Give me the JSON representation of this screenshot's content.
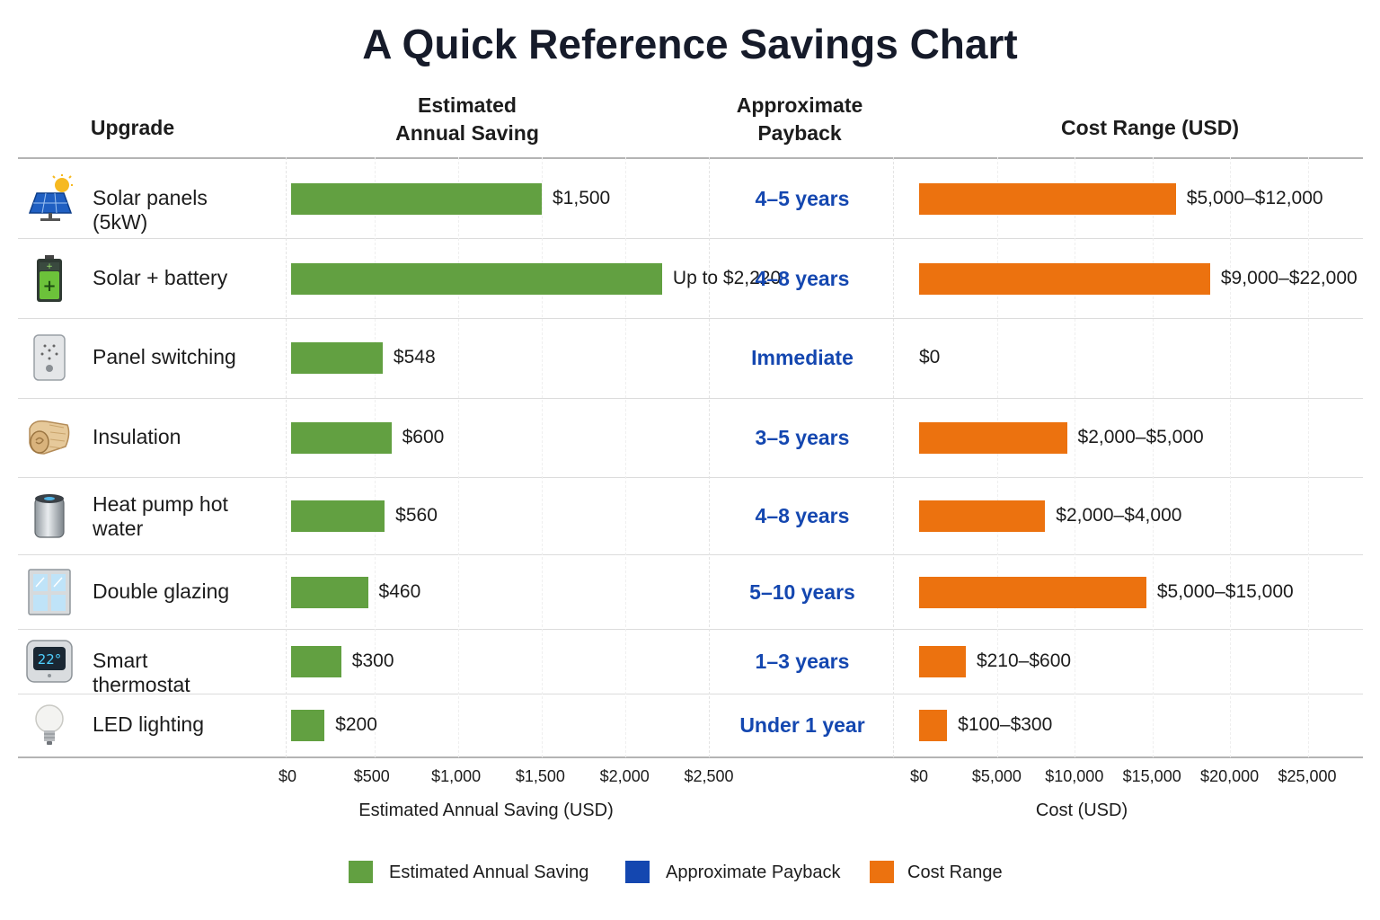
{
  "title": "A Quick Reference Savings Chart",
  "headers": {
    "upgrade": "Upgrade",
    "saving_line1": "Estimated",
    "saving_line2": "Annual Saving",
    "payback_line1": "Approximate",
    "payback_line2": "Payback",
    "cost": "Cost Range (USD)"
  },
  "colors": {
    "saving": "#62a041",
    "payback": "#1447b0",
    "cost": "#ec720f"
  },
  "chart_data": [
    {
      "type": "bar",
      "orientation": "horizontal",
      "categories": [
        "Solar panels (5kW)",
        "Solar + battery",
        "Panel switching",
        "Insulation",
        "Heat pump hot water",
        "Double glazing",
        "Smart thermostat",
        "LED lighting"
      ],
      "series": [
        {
          "name": "Estimated Annual Saving",
          "values": [
            1500,
            2220,
            548,
            600,
            560,
            460,
            300,
            200
          ]
        }
      ],
      "data_labels": [
        "$1,500",
        "Up to $2,220",
        "$548",
        "$600",
        "$560",
        "$460",
        "$300",
        "$200"
      ],
      "xlabel": "Estimated Annual Saving (USD)",
      "xlim": [
        0,
        2500
      ],
      "xticks": [
        "$0",
        "$500",
        "$1,000",
        "$1,500",
        "$2,000",
        "$2,500"
      ],
      "grid": true
    },
    {
      "type": "table",
      "columns": [
        "Approximate Payback"
      ],
      "rows": [
        "4–5 years",
        "4–8 years",
        "Immediate",
        "3–5 years",
        "4–8 years",
        "5–10 years",
        "1–3 years",
        "Under 1 year"
      ]
    },
    {
      "type": "bar",
      "orientation": "horizontal",
      "categories": [
        "Solar panels (5kW)",
        "Solar + battery",
        "Panel switching",
        "Insulation",
        "Heat pump hot water",
        "Double glazing",
        "Smart thermostat",
        "LED lighting"
      ],
      "series": [
        {
          "name": "Cost Range",
          "values": [
            [
              0,
              16500
            ],
            [
              0,
              18700
            ],
            [
              0,
              0
            ],
            [
              0,
              9500
            ],
            [
              0,
              8100
            ],
            [
              0,
              14600
            ],
            [
              0,
              3000
            ],
            [
              0,
              1800
            ]
          ]
        }
      ],
      "data_labels": [
        "$5,000–$12,000",
        "$9,000–$22,000",
        "$0",
        "$2,000–$5,000",
        "$2,000–$4,000",
        "$5,000–$15,000",
        "$210–$600",
        "$100–$300"
      ],
      "xlabel": "Cost (USD)",
      "xlim": [
        0,
        25000
      ],
      "xticks": [
        "$0",
        "$5,000",
        "$10,000",
        "$15,000",
        "$20,000",
        "$25,000"
      ],
      "grid": true
    }
  ],
  "rows": [
    {
      "label": "Solar panels (5kW)",
      "icon": "solar-panel-icon"
    },
    {
      "label": "Solar + battery",
      "icon": "battery-icon"
    },
    {
      "label": "Panel switching",
      "icon": "wall-switch-icon"
    },
    {
      "label": "Insulation",
      "icon": "insulation-roll-icon"
    },
    {
      "label": "Heat pump hot water",
      "icon": "water-heater-icon"
    },
    {
      "label": "Double glazing",
      "icon": "window-icon"
    },
    {
      "label": "Smart thermostat",
      "icon": "thermostat-icon"
    },
    {
      "label": "LED lighting",
      "icon": "light-bulb-icon"
    }
  ],
  "thermostat_reading": "22°",
  "legend": [
    {
      "label": "Estimated Annual Saving",
      "color": "#62a041"
    },
    {
      "label": "Approximate Payback",
      "color": "#1447b0"
    },
    {
      "label": "Cost Range",
      "color": "#ec720f"
    }
  ]
}
